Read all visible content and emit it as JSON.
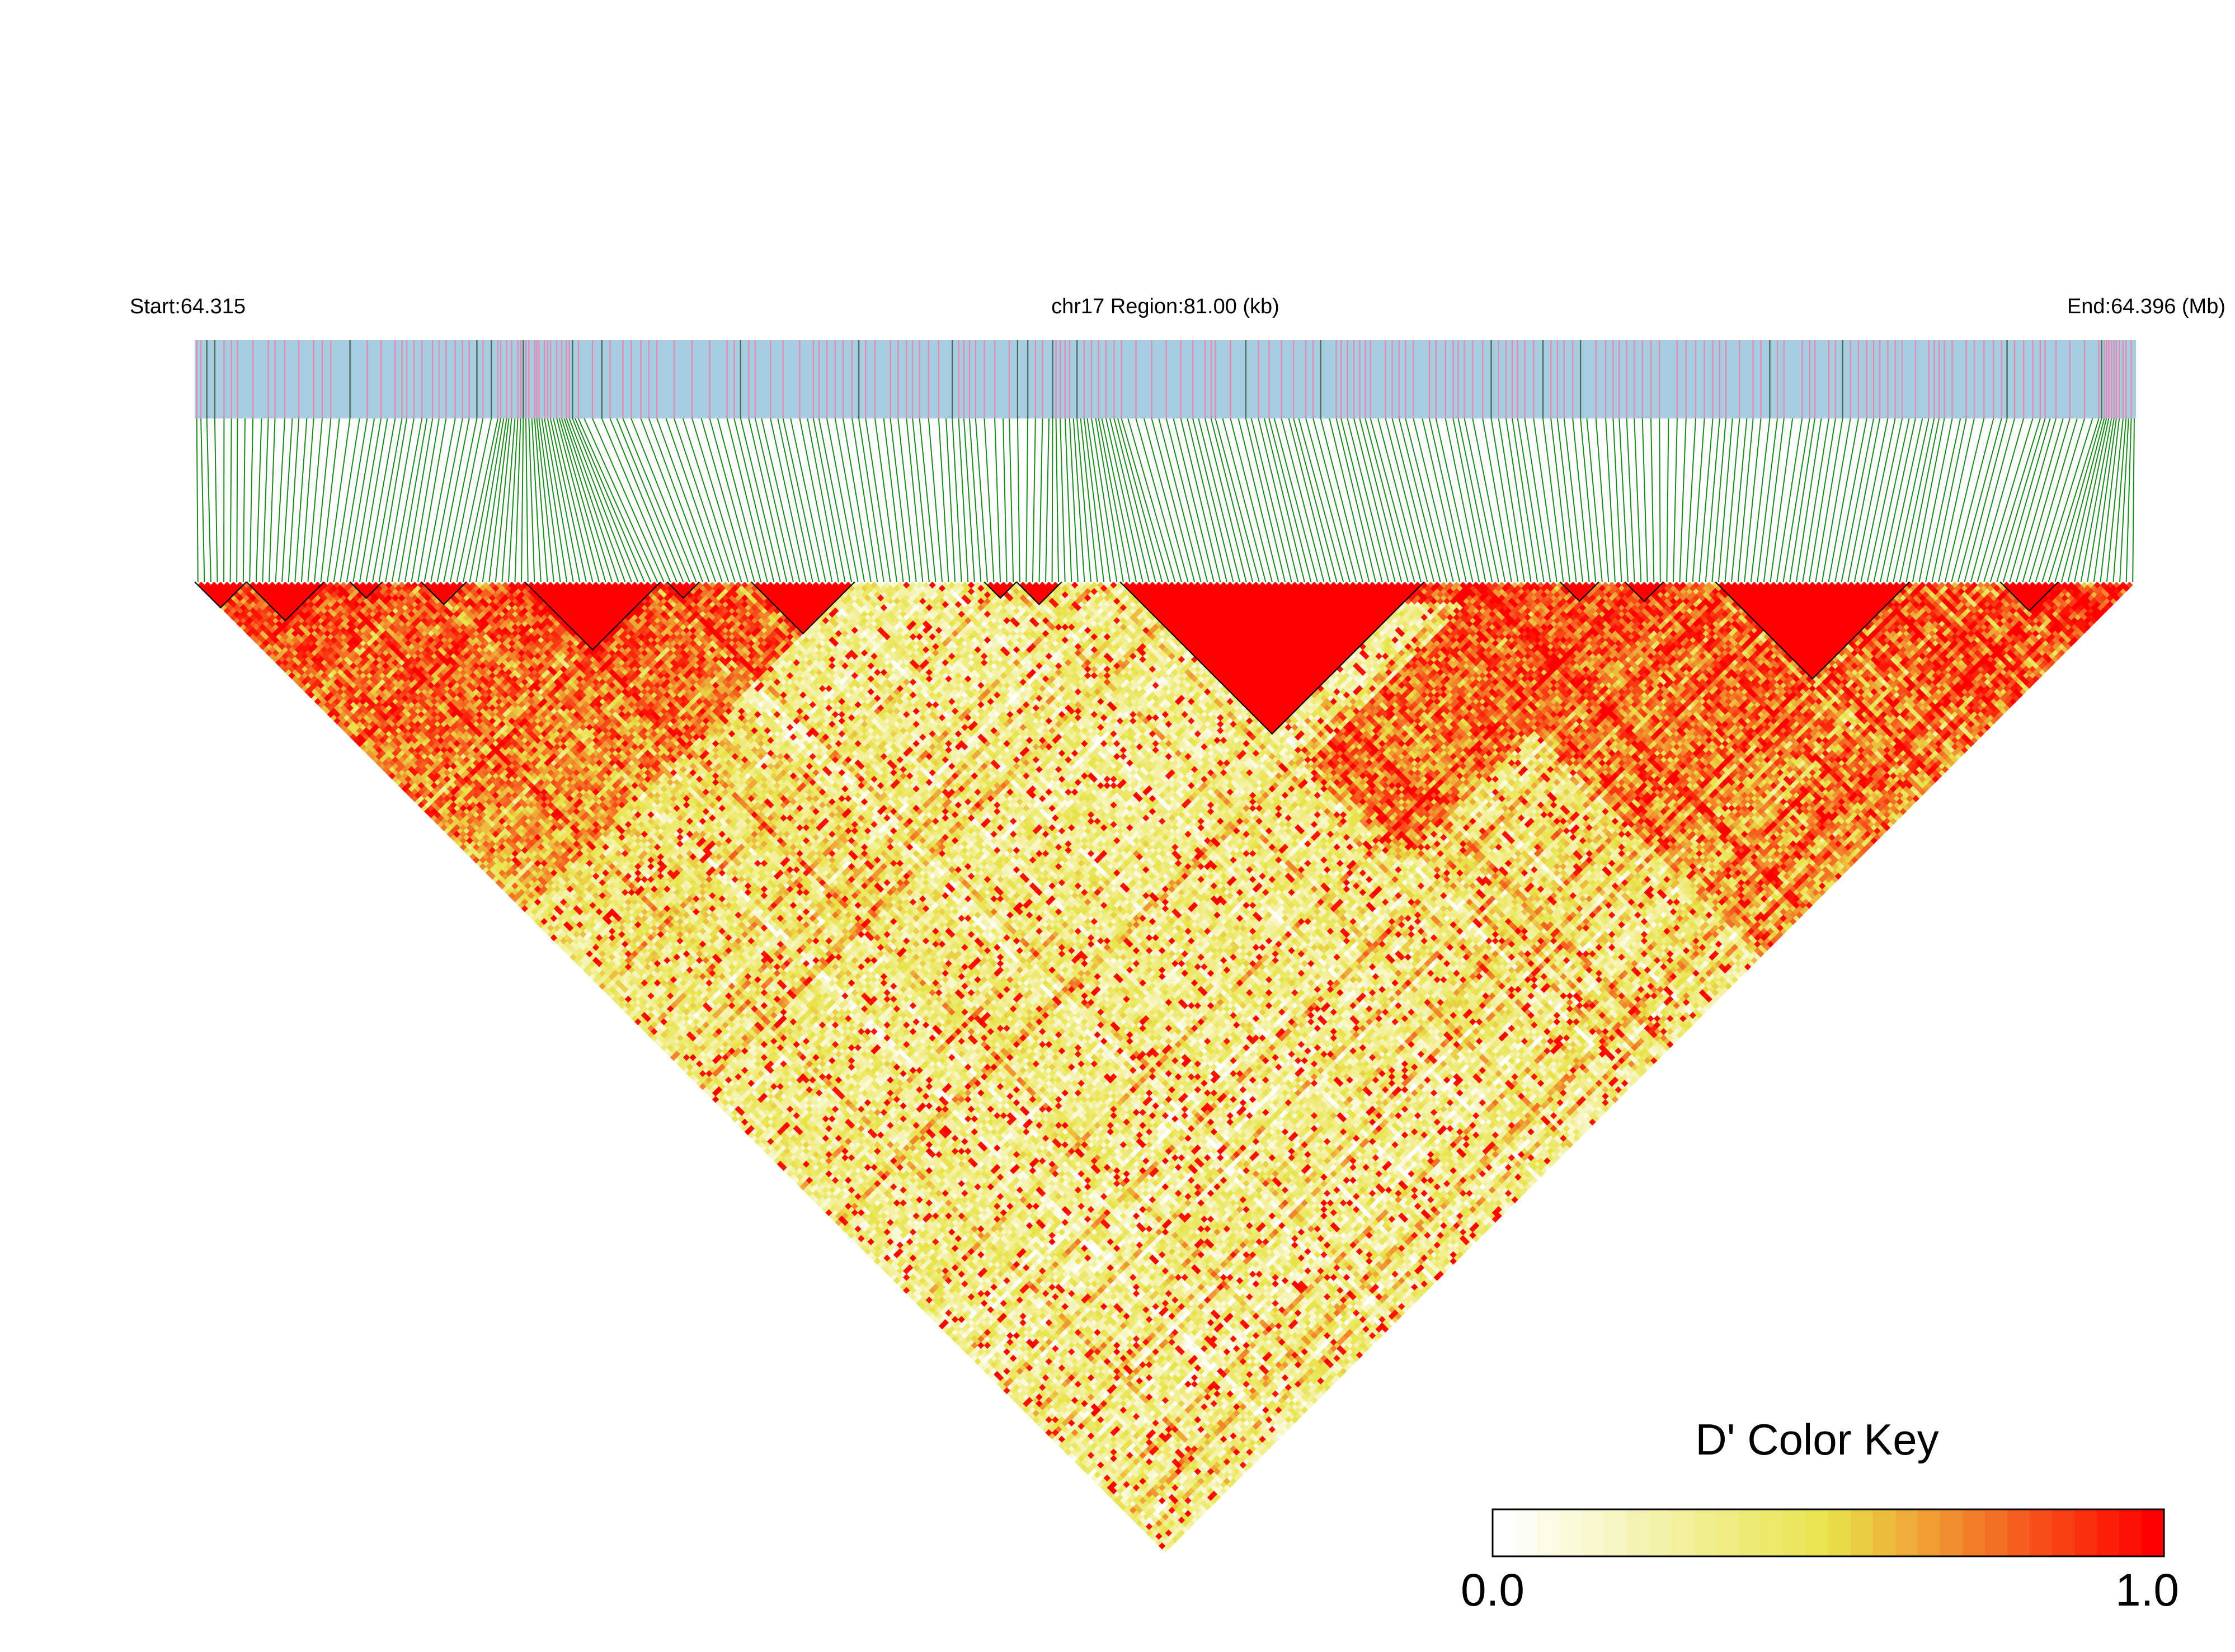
{
  "chart_data": {
    "type": "heatmap",
    "title": "",
    "header": {
      "start_label": "Start:64.315",
      "region_label": "chr17 Region:81.00 (kb)",
      "end_label": "End:64.396 (Mb)"
    },
    "chromosome": "chr17",
    "region_start_mb": 64.315,
    "region_end_mb": 64.396,
    "region_length_kb": 81.0,
    "snp_count": 300,
    "metric": "D'",
    "value_range": [
      0.0,
      1.0
    ],
    "ld_blocks": [
      {
        "from_snp": 1,
        "to_snp": 8
      },
      {
        "from_snp": 9,
        "to_snp": 20
      },
      {
        "from_snp": 25,
        "to_snp": 29
      },
      {
        "from_snp": 36,
        "to_snp": 42
      },
      {
        "from_snp": 52,
        "to_snp": 72
      },
      {
        "from_snp": 74,
        "to_snp": 78
      },
      {
        "from_snp": 87,
        "to_snp": 102
      },
      {
        "from_snp": 123,
        "to_snp": 127
      },
      {
        "from_snp": 128,
        "to_snp": 134
      },
      {
        "from_snp": 144,
        "to_snp": 190
      },
      {
        "from_snp": 212,
        "to_snp": 217
      },
      {
        "from_snp": 222,
        "to_snp": 227
      },
      {
        "from_snp": 236,
        "to_snp": 265
      },
      {
        "from_snp": 280,
        "to_snp": 288
      }
    ],
    "ld_pattern": {
      "high_ld_regions_snp_ranges": [
        [
          1,
          102
        ],
        [
          144,
          230
        ],
        [
          185,
          300
        ]
      ],
      "low_ld_core_snp_range": [
        95,
        200
      ]
    },
    "color_key": {
      "title": "D' Color Key",
      "min_label": "0.0",
      "max_label": "1.0",
      "stops": [
        "#ffffff",
        "#e8e34a",
        "#ff0000"
      ]
    },
    "colors": {
      "track_background": "#a7cde0",
      "snp_marker_minor": "#e48ab4",
      "snp_marker_major": "#4a6a5a",
      "connector_lines": "#1a8a1a",
      "block_outline": "#000000"
    }
  }
}
